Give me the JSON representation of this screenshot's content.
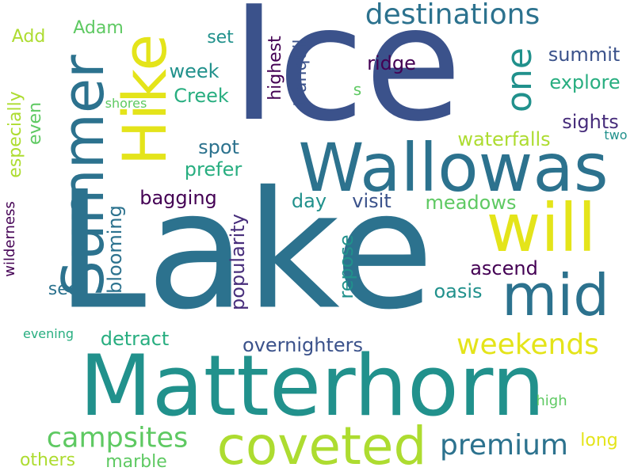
{
  "colors": {
    "background": "#ffffff",
    "palette": [
      "#3b528b",
      "#2c728e",
      "#21918c",
      "#28ae80",
      "#5ec962",
      "#addc30",
      "#e4e41a",
      "#440154",
      "#472d7b"
    ]
  },
  "words": [
    {
      "text": "Lake",
      "color": "#2c728e"
    },
    {
      "text": "Ice",
      "color": "#3b528b"
    },
    {
      "text": "Matterhorn",
      "color": "#21918c"
    },
    {
      "text": "Wallowas",
      "color": "#2c728e"
    },
    {
      "text": "Summer",
      "color": "#2c728e"
    },
    {
      "text": "Hike",
      "color": "#e4e41a"
    },
    {
      "text": "will",
      "color": "#e4e41a"
    },
    {
      "text": "mid",
      "color": "#2c728e"
    },
    {
      "text": "coveted",
      "color": "#addc30"
    },
    {
      "text": "one",
      "color": "#21918c"
    },
    {
      "text": "destinations",
      "color": "#2c728e"
    },
    {
      "text": "weekends",
      "color": "#e4e41a"
    },
    {
      "text": "campsites",
      "color": "#5ec962"
    },
    {
      "text": "premium",
      "color": "#2c728e"
    },
    {
      "text": "overnighters",
      "color": "#3b528b"
    },
    {
      "text": "popularity",
      "color": "#472d7b"
    },
    {
      "text": "blooming",
      "color": "#2c728e"
    },
    {
      "text": "bagging",
      "color": "#440154"
    },
    {
      "text": "waterfalls",
      "color": "#addc30"
    },
    {
      "text": "meadows",
      "color": "#5ec962"
    },
    {
      "text": "ascend",
      "color": "#440154"
    },
    {
      "text": "oasis",
      "color": "#21918c"
    },
    {
      "text": "repose",
      "color": "#21918c"
    },
    {
      "text": "detract",
      "color": "#28ae80"
    },
    {
      "text": "highest",
      "color": "#440154"
    },
    {
      "text": "tranquil",
      "color": "#3b528b"
    },
    {
      "text": "summit",
      "color": "#3b528b"
    },
    {
      "text": "explore",
      "color": "#28ae80"
    },
    {
      "text": "sights",
      "color": "#472d7b"
    },
    {
      "text": "ridge",
      "color": "#440154"
    },
    {
      "text": "visit",
      "color": "#3b528b"
    },
    {
      "text": "day",
      "color": "#21918c"
    },
    {
      "text": "spot",
      "color": "#2c728e"
    },
    {
      "text": "prefer",
      "color": "#28ae80"
    },
    {
      "text": "week",
      "color": "#21918c"
    },
    {
      "text": "Creek",
      "color": "#28ae80"
    },
    {
      "text": "set",
      "color": "#21918c"
    },
    {
      "text": "Adam",
      "color": "#5ec962"
    },
    {
      "text": "Add",
      "color": "#addc30"
    },
    {
      "text": "especially",
      "color": "#addc30"
    },
    {
      "text": "even",
      "color": "#5ec962"
    },
    {
      "text": "shores",
      "color": "#5ec962"
    },
    {
      "text": "s",
      "color": "#5ec962"
    },
    {
      "text": "two",
      "color": "#21918c"
    },
    {
      "text": "wilderness",
      "color": "#440154"
    },
    {
      "text": "evening",
      "color": "#28ae80"
    },
    {
      "text": "see",
      "color": "#2c728e"
    },
    {
      "text": "high",
      "color": "#5ec962"
    },
    {
      "text": "long",
      "color": "#e4e41a"
    },
    {
      "text": "others",
      "color": "#addc30"
    },
    {
      "text": "marble",
      "color": "#5ec962"
    }
  ]
}
